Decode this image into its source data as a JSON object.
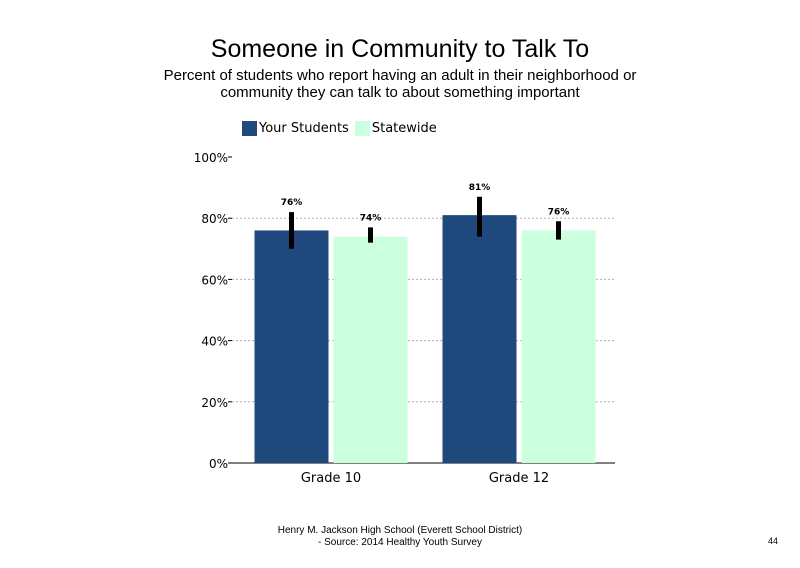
{
  "chart_data": {
    "type": "bar",
    "title": "Someone in Community to Talk To",
    "subtitle": "Percent of students who report having an adult in their neighborhood or community they can talk to about something important",
    "categories": [
      "Grade 10",
      "Grade 12"
    ],
    "series": [
      {
        "name": "Your Students",
        "color": "#1f497d",
        "values": [
          76,
          81
        ],
        "labels": [
          "76%",
          "81%"
        ],
        "error_low": [
          70,
          74
        ],
        "error_high": [
          82,
          87
        ]
      },
      {
        "name": "Statewide",
        "color": "#ccffdd",
        "values": [
          74,
          76
        ],
        "labels": [
          "74%",
          "76%"
        ],
        "error_low": [
          72,
          73
        ],
        "error_high": [
          77,
          79
        ]
      }
    ],
    "ylim": [
      0,
      100
    ],
    "yticks": [
      0,
      20,
      40,
      60,
      80,
      100
    ],
    "ytick_labels": [
      "0%",
      "20%",
      "40%",
      "60%",
      "80%",
      "100%"
    ],
    "grid": true,
    "legend_position": "top-left"
  },
  "footer": {
    "line1": "Henry M. Jackson High School (Everett School District)",
    "line2": "- Source: 2014 Healthy Youth Survey"
  },
  "page_number": "44"
}
